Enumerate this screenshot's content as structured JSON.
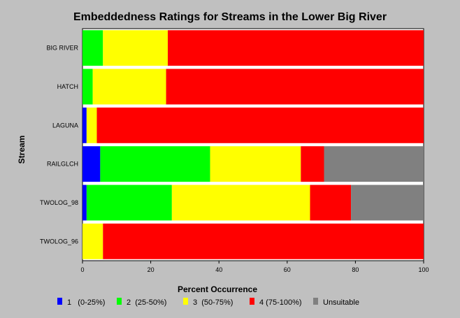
{
  "chart_data": {
    "type": "bar",
    "orientation": "horizontal",
    "stacked": true,
    "title": "Embeddedness Ratings for Streams in the Lower Big River",
    "xlabel": "Percent Occurrence",
    "ylabel": "Stream",
    "xlim": [
      0,
      100
    ],
    "xticks": [
      0,
      20,
      40,
      60,
      80,
      100
    ],
    "grid": false,
    "legend_position": "bottom",
    "categories": [
      "BIG RIVER",
      "HATCH",
      "LAGUNA",
      "RAILGLCH",
      "TWOLOG_98",
      "TWOLOG_96"
    ],
    "series": [
      {
        "name": "1   (0-25%)",
        "color": "#0000ff",
        "values": [
          0,
          0,
          1.2,
          5.2,
          1.2,
          0
        ]
      },
      {
        "name": "2  (25-50%)",
        "color": "#00ff00",
        "values": [
          6,
          3,
          0,
          32.2,
          25,
          0
        ]
      },
      {
        "name": "3  (50-75%)",
        "color": "#ffff00",
        "values": [
          19,
          21.5,
          3,
          26.6,
          40.5,
          6
        ]
      },
      {
        "name": "4 (75-100%)",
        "color": "#ff0000",
        "values": [
          75,
          75.5,
          95.8,
          6.8,
          12,
          94
        ]
      },
      {
        "name": "Unsuitable",
        "color": "#808080",
        "values": [
          0,
          0,
          0,
          29.2,
          21.3,
          0
        ]
      }
    ]
  }
}
